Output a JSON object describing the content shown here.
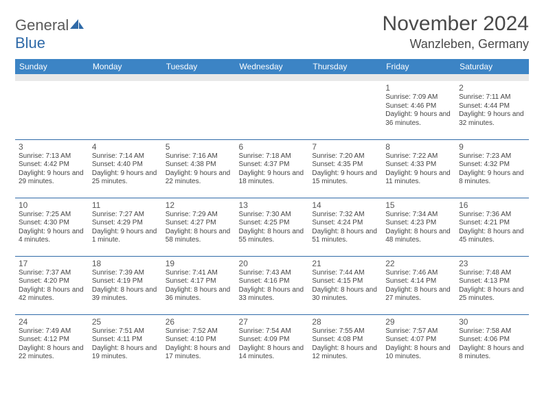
{
  "logo": {
    "general": "General",
    "blue": "Blue"
  },
  "title": "November 2024",
  "location": "Wanzleben, Germany",
  "colors": {
    "header_bg": "#3c84c5",
    "header_text": "#ffffff",
    "row_border": "#2f6aa8",
    "spacer_bg": "#e8e8e8",
    "text": "#444444",
    "title_color": "#4a4a4a",
    "logo_gray": "#5a5a5a",
    "logo_blue": "#2f6aa8"
  },
  "day_names": [
    "Sunday",
    "Monday",
    "Tuesday",
    "Wednesday",
    "Thursday",
    "Friday",
    "Saturday"
  ],
  "weeks": [
    [
      {
        "n": "",
        "sr": "",
        "ss": "",
        "dl": ""
      },
      {
        "n": "",
        "sr": "",
        "ss": "",
        "dl": ""
      },
      {
        "n": "",
        "sr": "",
        "ss": "",
        "dl": ""
      },
      {
        "n": "",
        "sr": "",
        "ss": "",
        "dl": ""
      },
      {
        "n": "",
        "sr": "",
        "ss": "",
        "dl": ""
      },
      {
        "n": "1",
        "sr": "Sunrise: 7:09 AM",
        "ss": "Sunset: 4:46 PM",
        "dl": "Daylight: 9 hours and 36 minutes."
      },
      {
        "n": "2",
        "sr": "Sunrise: 7:11 AM",
        "ss": "Sunset: 4:44 PM",
        "dl": "Daylight: 9 hours and 32 minutes."
      }
    ],
    [
      {
        "n": "3",
        "sr": "Sunrise: 7:13 AM",
        "ss": "Sunset: 4:42 PM",
        "dl": "Daylight: 9 hours and 29 minutes."
      },
      {
        "n": "4",
        "sr": "Sunrise: 7:14 AM",
        "ss": "Sunset: 4:40 PM",
        "dl": "Daylight: 9 hours and 25 minutes."
      },
      {
        "n": "5",
        "sr": "Sunrise: 7:16 AM",
        "ss": "Sunset: 4:38 PM",
        "dl": "Daylight: 9 hours and 22 minutes."
      },
      {
        "n": "6",
        "sr": "Sunrise: 7:18 AM",
        "ss": "Sunset: 4:37 PM",
        "dl": "Daylight: 9 hours and 18 minutes."
      },
      {
        "n": "7",
        "sr": "Sunrise: 7:20 AM",
        "ss": "Sunset: 4:35 PM",
        "dl": "Daylight: 9 hours and 15 minutes."
      },
      {
        "n": "8",
        "sr": "Sunrise: 7:22 AM",
        "ss": "Sunset: 4:33 PM",
        "dl": "Daylight: 9 hours and 11 minutes."
      },
      {
        "n": "9",
        "sr": "Sunrise: 7:23 AM",
        "ss": "Sunset: 4:32 PM",
        "dl": "Daylight: 9 hours and 8 minutes."
      }
    ],
    [
      {
        "n": "10",
        "sr": "Sunrise: 7:25 AM",
        "ss": "Sunset: 4:30 PM",
        "dl": "Daylight: 9 hours and 4 minutes."
      },
      {
        "n": "11",
        "sr": "Sunrise: 7:27 AM",
        "ss": "Sunset: 4:29 PM",
        "dl": "Daylight: 9 hours and 1 minute."
      },
      {
        "n": "12",
        "sr": "Sunrise: 7:29 AM",
        "ss": "Sunset: 4:27 PM",
        "dl": "Daylight: 8 hours and 58 minutes."
      },
      {
        "n": "13",
        "sr": "Sunrise: 7:30 AM",
        "ss": "Sunset: 4:25 PM",
        "dl": "Daylight: 8 hours and 55 minutes."
      },
      {
        "n": "14",
        "sr": "Sunrise: 7:32 AM",
        "ss": "Sunset: 4:24 PM",
        "dl": "Daylight: 8 hours and 51 minutes."
      },
      {
        "n": "15",
        "sr": "Sunrise: 7:34 AM",
        "ss": "Sunset: 4:23 PM",
        "dl": "Daylight: 8 hours and 48 minutes."
      },
      {
        "n": "16",
        "sr": "Sunrise: 7:36 AM",
        "ss": "Sunset: 4:21 PM",
        "dl": "Daylight: 8 hours and 45 minutes."
      }
    ],
    [
      {
        "n": "17",
        "sr": "Sunrise: 7:37 AM",
        "ss": "Sunset: 4:20 PM",
        "dl": "Daylight: 8 hours and 42 minutes."
      },
      {
        "n": "18",
        "sr": "Sunrise: 7:39 AM",
        "ss": "Sunset: 4:19 PM",
        "dl": "Daylight: 8 hours and 39 minutes."
      },
      {
        "n": "19",
        "sr": "Sunrise: 7:41 AM",
        "ss": "Sunset: 4:17 PM",
        "dl": "Daylight: 8 hours and 36 minutes."
      },
      {
        "n": "20",
        "sr": "Sunrise: 7:43 AM",
        "ss": "Sunset: 4:16 PM",
        "dl": "Daylight: 8 hours and 33 minutes."
      },
      {
        "n": "21",
        "sr": "Sunrise: 7:44 AM",
        "ss": "Sunset: 4:15 PM",
        "dl": "Daylight: 8 hours and 30 minutes."
      },
      {
        "n": "22",
        "sr": "Sunrise: 7:46 AM",
        "ss": "Sunset: 4:14 PM",
        "dl": "Daylight: 8 hours and 27 minutes."
      },
      {
        "n": "23",
        "sr": "Sunrise: 7:48 AM",
        "ss": "Sunset: 4:13 PM",
        "dl": "Daylight: 8 hours and 25 minutes."
      }
    ],
    [
      {
        "n": "24",
        "sr": "Sunrise: 7:49 AM",
        "ss": "Sunset: 4:12 PM",
        "dl": "Daylight: 8 hours and 22 minutes."
      },
      {
        "n": "25",
        "sr": "Sunrise: 7:51 AM",
        "ss": "Sunset: 4:11 PM",
        "dl": "Daylight: 8 hours and 19 minutes."
      },
      {
        "n": "26",
        "sr": "Sunrise: 7:52 AM",
        "ss": "Sunset: 4:10 PM",
        "dl": "Daylight: 8 hours and 17 minutes."
      },
      {
        "n": "27",
        "sr": "Sunrise: 7:54 AM",
        "ss": "Sunset: 4:09 PM",
        "dl": "Daylight: 8 hours and 14 minutes."
      },
      {
        "n": "28",
        "sr": "Sunrise: 7:55 AM",
        "ss": "Sunset: 4:08 PM",
        "dl": "Daylight: 8 hours and 12 minutes."
      },
      {
        "n": "29",
        "sr": "Sunrise: 7:57 AM",
        "ss": "Sunset: 4:07 PM",
        "dl": "Daylight: 8 hours and 10 minutes."
      },
      {
        "n": "30",
        "sr": "Sunrise: 7:58 AM",
        "ss": "Sunset: 4:06 PM",
        "dl": "Daylight: 8 hours and 8 minutes."
      }
    ]
  ]
}
